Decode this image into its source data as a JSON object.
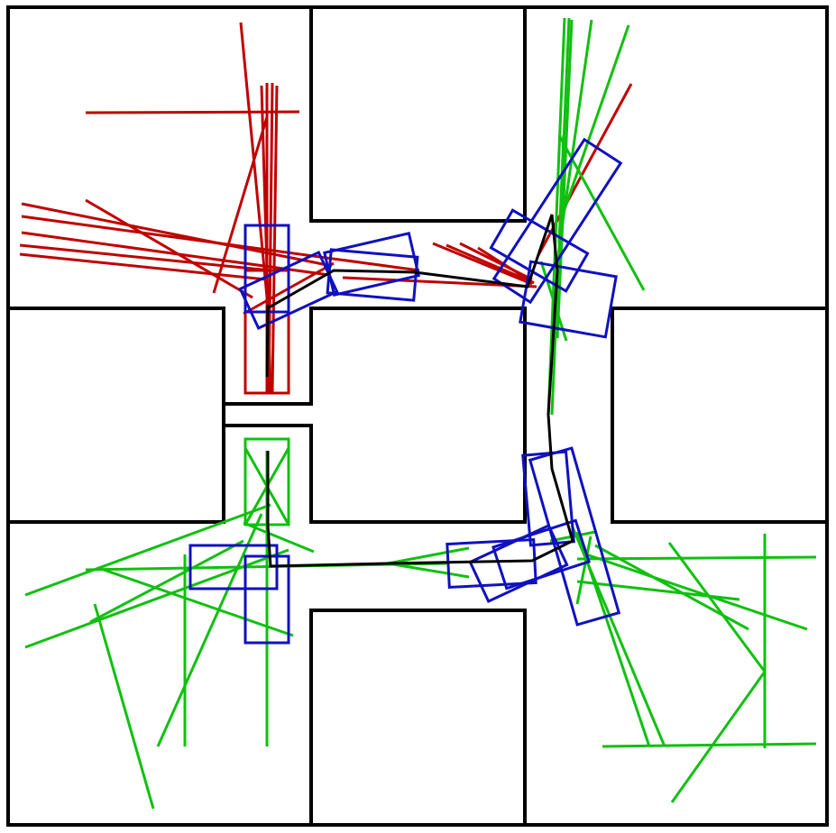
{
  "figure": {
    "type": "rectangle placement search diagram",
    "description_visible_text": ""
  },
  "colors": {
    "background": "#ffffff",
    "walls": "#000000",
    "path": "#000000",
    "boxes": "#1010c0",
    "rays_red": "#c00000",
    "rays_green": "#10c010"
  }
}
